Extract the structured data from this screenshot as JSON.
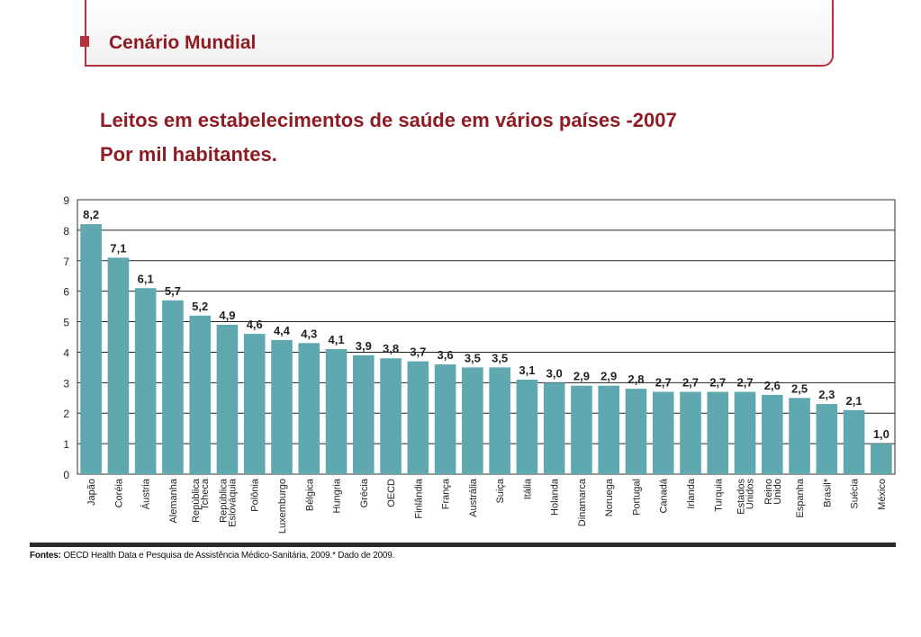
{
  "header": {
    "title": "Cenário Mundial"
  },
  "chart_data": {
    "type": "bar",
    "title": "Leitos em estabelecimentos de saúde em vários países -2007",
    "subtitle": "Por mil habitantes.",
    "xlabel": "",
    "ylabel": "",
    "ylim": [
      0,
      9
    ],
    "yticks": [
      0,
      1,
      2,
      3,
      4,
      5,
      6,
      7,
      8,
      9
    ],
    "grid": true,
    "categories": [
      "Japão",
      "Coréia",
      "Áustria",
      "Alemanha",
      "República Tcheca",
      "República Eslováquia",
      "Polônia",
      "Luxemburgo",
      "Bélgica",
      "Hungria",
      "Grécia",
      "OECD",
      "Finlândia",
      "França",
      "Austrália",
      "Suiça",
      "Itália",
      "Holanda",
      "Dinamarca",
      "Noruega",
      "Portugal",
      "Canadá",
      "Irlanda",
      "Turquia",
      "Estados Unidos",
      "Reino Unido",
      "Espanha",
      "Brasil*",
      "Suécia",
      "México"
    ],
    "values": [
      8.2,
      7.1,
      6.1,
      5.7,
      5.2,
      4.9,
      4.6,
      4.4,
      4.3,
      4.1,
      3.9,
      3.8,
      3.7,
      3.6,
      3.5,
      3.5,
      3.1,
      3.0,
      2.9,
      2.9,
      2.8,
      2.7,
      2.7,
      2.7,
      2.7,
      2.6,
      2.5,
      2.3,
      2.1,
      1.0
    ],
    "value_labels": [
      "8,2",
      "7,1",
      "6,1",
      "5,7",
      "5,2",
      "4,9",
      "4,6",
      "4,4",
      "4,3",
      "4,1",
      "3,9",
      "3,8",
      "3,7",
      "3,6",
      "3,5",
      "3,5",
      "3,1",
      "3,0",
      "2,9",
      "2,9",
      "2,8",
      "2,7",
      "2,7",
      "2,7",
      "2,7",
      "2,6",
      "2,5",
      "2,3",
      "2,1",
      "1,0"
    ],
    "bar_color": "#5fa8b0",
    "source": {
      "label": "Fontes:",
      "text": "OECD Health Data e Pesquisa de Assistência Médico-Sanitária, 2009.* Dado de 2009."
    }
  }
}
